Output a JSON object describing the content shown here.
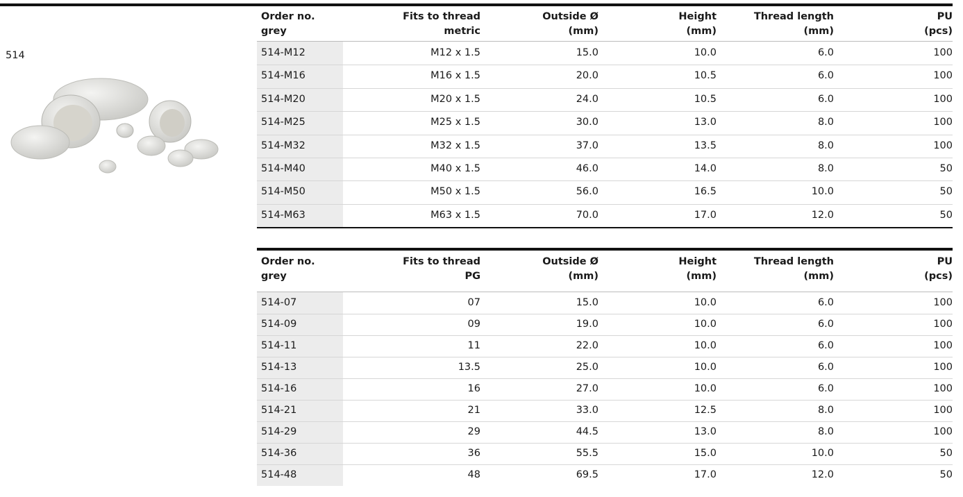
{
  "label": "514",
  "tables": [
    {
      "header": [
        [
          "Order no.",
          "grey"
        ],
        [
          "Fits to thread",
          "metric"
        ],
        [
          "Outside Ø",
          "(mm)"
        ],
        [
          "Height",
          "(mm)"
        ],
        [
          "Thread length",
          "(mm)"
        ],
        [
          "PU",
          "(pcs)"
        ]
      ],
      "rows": [
        [
          "514-M12",
          "M12 x 1.5",
          "15.0",
          "10.0",
          "6.0",
          "100"
        ],
        [
          "514-M16",
          "M16 x 1.5",
          "20.0",
          "10.5",
          "6.0",
          "100"
        ],
        [
          "514-M20",
          "M20 x 1.5",
          "24.0",
          "10.5",
          "6.0",
          "100"
        ],
        [
          "514-M25",
          "M25 x 1.5",
          "30.0",
          "13.0",
          "8.0",
          "100"
        ],
        [
          "514-M32",
          "M32 x 1.5",
          "37.0",
          "13.5",
          "8.0",
          "100"
        ],
        [
          "514-M40",
          "M40 x 1.5",
          "46.0",
          "14.0",
          "8.0",
          "50"
        ],
        [
          "514-M50",
          "M50 x 1.5",
          "56.0",
          "16.5",
          "10.0",
          "50"
        ],
        [
          "514-M63",
          "M63 x 1.5",
          "70.0",
          "17.0",
          "12.0",
          "50"
        ]
      ]
    },
    {
      "header": [
        [
          "Order no.",
          "grey"
        ],
        [
          "Fits to thread",
          "PG"
        ],
        [
          "Outside Ø",
          "(mm)"
        ],
        [
          "Height",
          "(mm)"
        ],
        [
          "Thread length",
          "(mm)"
        ],
        [
          "PU",
          "(pcs)"
        ]
      ],
      "rows": [
        [
          "514-07",
          "07",
          "15.0",
          "10.0",
          "6.0",
          "100"
        ],
        [
          "514-09",
          "09",
          "19.0",
          "10.0",
          "6.0",
          "100"
        ],
        [
          "514-11",
          "11",
          "22.0",
          "10.0",
          "6.0",
          "100"
        ],
        [
          "514-13",
          "13.5",
          "25.0",
          "10.0",
          "6.0",
          "100"
        ],
        [
          "514-16",
          "16",
          "27.0",
          "10.0",
          "6.0",
          "100"
        ],
        [
          "514-21",
          "21",
          "33.0",
          "12.5",
          "8.0",
          "100"
        ],
        [
          "514-29",
          "29",
          "44.5",
          "13.0",
          "8.0",
          "100"
        ],
        [
          "514-36",
          "36",
          "55.5",
          "15.0",
          "10.0",
          "50"
        ],
        [
          "514-48",
          "48",
          "69.5",
          "17.0",
          "12.0",
          "50"
        ]
      ]
    }
  ]
}
